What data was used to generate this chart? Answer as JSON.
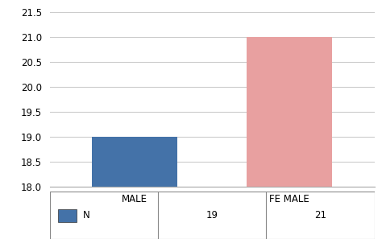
{
  "categories": [
    "MALE",
    "FE MALE"
  ],
  "values": [
    19,
    21
  ],
  "bar_colors": [
    "#4472A8",
    "#E8A0A0"
  ],
  "ylim": [
    18,
    21.5
  ],
  "yticks": [
    18,
    18.5,
    19,
    19.5,
    20,
    20.5,
    21,
    21.5
  ],
  "legend_label": "N",
  "table_values": [
    "19",
    "21"
  ],
  "background_color": "#ffffff",
  "grid_color": "#cccccc",
  "bar_width": 0.55
}
